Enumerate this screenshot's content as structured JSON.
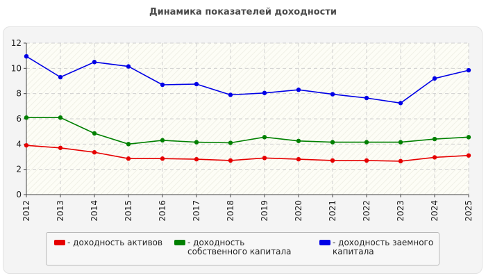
{
  "page": {
    "title": "Динамика показателей доходности"
  },
  "chart_data": {
    "type": "line",
    "title": "Динамика показателей доходности",
    "x": [
      "2012",
      "2013",
      "2014",
      "2015",
      "2016",
      "2017",
      "2018",
      "2019",
      "2020",
      "2021",
      "2022",
      "2023",
      "2024",
      "2025"
    ],
    "ylim": [
      0,
      12
    ],
    "yticks": [
      0,
      2,
      4,
      6,
      8,
      10,
      12
    ],
    "grid": true,
    "legend_position": "bottom",
    "series": [
      {
        "name": "- доходность активов",
        "color": "#e60000",
        "values": [
          3.9,
          3.7,
          3.35,
          2.85,
          2.85,
          2.8,
          2.7,
          2.9,
          2.8,
          2.7,
          2.7,
          2.65,
          2.95,
          3.1
        ]
      },
      {
        "name": "- доходность собственного капитала",
        "color": "#008000",
        "values": [
          6.1,
          6.1,
          4.85,
          4.0,
          4.3,
          4.15,
          4.1,
          4.55,
          4.25,
          4.15,
          4.15,
          4.15,
          4.4,
          4.55
        ]
      },
      {
        "name": "- доходность заемного капитала",
        "color": "#0000e6",
        "values": [
          10.95,
          9.3,
          10.5,
          10.15,
          8.7,
          8.75,
          7.9,
          8.05,
          8.3,
          7.95,
          7.65,
          7.25,
          9.2,
          9.85
        ]
      }
    ]
  }
}
